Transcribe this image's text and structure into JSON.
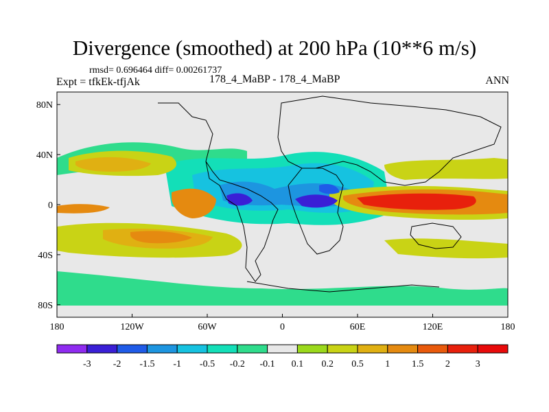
{
  "title": "Divergence (smoothed) at 200 hPa (10**6 m/s)",
  "stats_line": "rmsd= 0.696464 diff= 0.00261737",
  "expt_line": "Expt = tfkEk-tfjAk",
  "cases_line": "178_4_MaBP - 178_4_MaBP",
  "season": "ANN",
  "chart_data": {
    "type": "heatmap",
    "title": "Divergence (smoothed) at 200 hPa (10**6 m/s)",
    "xlabel": "",
    "ylabel": "",
    "xlim": [
      -180,
      180
    ],
    "ylim": [
      -90,
      90
    ],
    "x_ticks": [
      {
        "value": -180,
        "label": "180"
      },
      {
        "value": -120,
        "label": "120W"
      },
      {
        "value": -60,
        "label": "60W"
      },
      {
        "value": 0,
        "label": "0"
      },
      {
        "value": 60,
        "label": "60E"
      },
      {
        "value": 120,
        "label": "120E"
      },
      {
        "value": 180,
        "label": "180"
      }
    ],
    "y_ticks": [
      {
        "value": 80,
        "label": "80N"
      },
      {
        "value": 40,
        "label": "40N"
      },
      {
        "value": 0,
        "label": "0"
      },
      {
        "value": -40,
        "label": "40S"
      },
      {
        "value": -80,
        "label": "80S"
      }
    ],
    "colorbar": {
      "levels": [
        "-3",
        "-2",
        "-1.5",
        "-1",
        "-0.5",
        "-0.2",
        "-0.1",
        "0.1",
        "0.2",
        "0.5",
        "1",
        "1.5",
        "2",
        "3"
      ],
      "colors": [
        "#8f2bf0",
        "#3a1fd6",
        "#1f5be8",
        "#1d95e0",
        "#16c2e0",
        "#13dfb8",
        "#2fdc8c",
        "#e8e8e8",
        "#9bd91c",
        "#c9d315",
        "#e0b012",
        "#e58a10",
        "#e95a0c",
        "#e8200c",
        "#e80a0a"
      ]
    },
    "features": [
      {
        "lon": -55,
        "lat": 8,
        "value": -1.5
      },
      {
        "lon": -30,
        "lat": 2,
        "value": -2
      },
      {
        "lon": 30,
        "lat": 2,
        "value": -2
      },
      {
        "lon": 120,
        "lat": 1,
        "value": 2.5
      },
      {
        "lon": -75,
        "lat": 2,
        "value": 1.5
      },
      {
        "lon": -120,
        "lat": -12,
        "value": 1.2
      }
    ]
  }
}
